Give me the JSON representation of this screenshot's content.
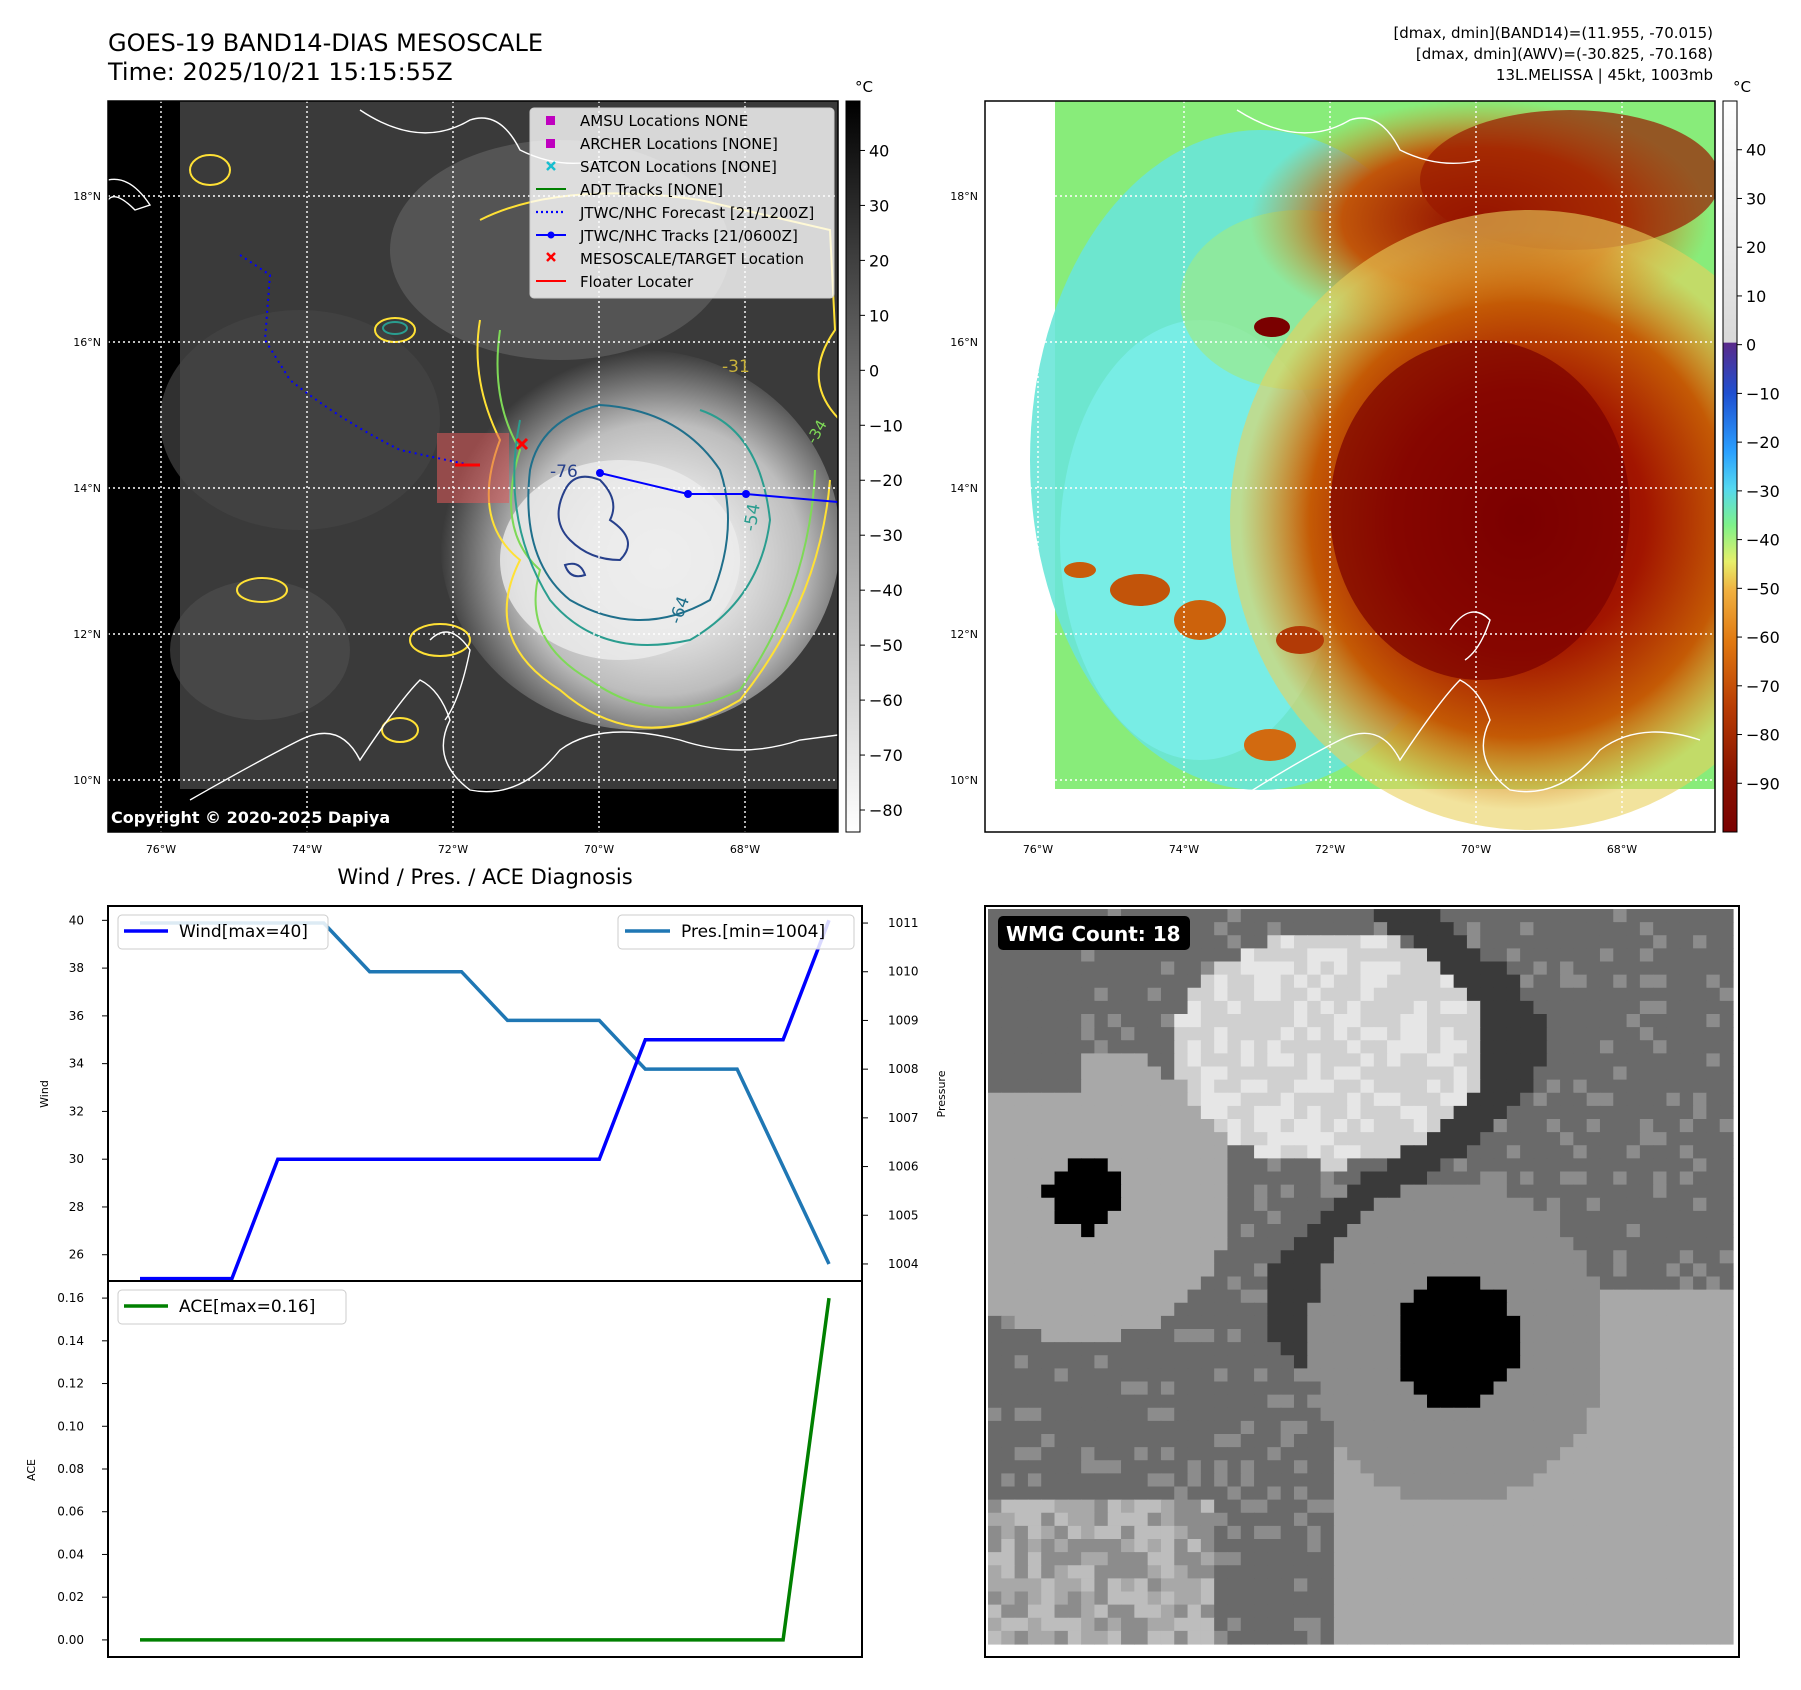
{
  "header": {
    "title_line1": "GOES-19 BAND14-DIAS MESOSCALE",
    "title_line2": "Time: 2025/10/21 15:15:55Z",
    "info_line1": "[dmax, dmin](BAND14)=(11.955, -70.015)",
    "info_line2": "[dmax, dmin](AWV)=(-30.825, -70.168)",
    "info_line3": "13L.MELISSA | 45kt, 1003mb"
  },
  "map_ir": {
    "copyright": "Copyright © 2020-2025 Dapiya",
    "lon_labels": [
      "76°W",
      "74°W",
      "72°W",
      "70°W",
      "68°W"
    ],
    "lat_labels": [
      "18°N",
      "16°N",
      "14°N",
      "12°N",
      "10°N"
    ],
    "contour_labels": [
      "-76",
      "-64",
      "-54",
      "-31",
      "-34"
    ],
    "legend": [
      {
        "label": "AMSU Locations NONE",
        "color": "#bf00bf",
        "marker": "square"
      },
      {
        "label": "ARCHER Locations [NONE]",
        "color": "#bf00bf",
        "marker": "square"
      },
      {
        "label": "SATCON Locations [NONE]",
        "color": "#17becf",
        "marker": "x"
      },
      {
        "label": "ADT Tracks [NONE]",
        "color": "#008000",
        "marker": "line"
      },
      {
        "label": "JTWC/NHC Forecast [21/1200Z]",
        "color": "#0000ff",
        "marker": "dotted"
      },
      {
        "label": "JTWC/NHC Tracks [21/0600Z]",
        "color": "#0000ff",
        "marker": "line-dot"
      },
      {
        "label": "MESOSCALE/TARGET Location",
        "color": "#ff0000",
        "marker": "x"
      },
      {
        "label": "Floater Locater",
        "color": "#ff0000",
        "marker": "line"
      }
    ],
    "colorbar": {
      "unit": "°C",
      "ticks": [
        "40",
        "30",
        "20",
        "10",
        "0",
        "−10",
        "−20",
        "−30",
        "−40",
        "−50",
        "−60",
        "−70",
        "−80"
      ]
    }
  },
  "map_awv": {
    "lon_labels": [
      "76°W",
      "74°W",
      "72°W",
      "70°W",
      "68°W"
    ],
    "lat_labels": [
      "18°N",
      "16°N",
      "14°N",
      "12°N",
      "10°N"
    ],
    "colorbar": {
      "unit": "°C",
      "ticks": [
        "40",
        "30",
        "20",
        "10",
        "0",
        "−10",
        "−20",
        "−30",
        "−40",
        "−50",
        "−60",
        "−70",
        "−80",
        "−90"
      ]
    }
  },
  "wmg": {
    "label": "WMG Count: 18"
  },
  "chart_data": [
    {
      "type": "line",
      "title": "Wind / Pres. / ACE Diagnosis",
      "x": [
        0,
        1,
        2,
        3,
        4,
        5,
        6,
        7,
        8,
        9,
        10,
        11,
        12,
        13,
        14,
        15
      ],
      "ylabel": "Wind",
      "ylim": [
        24.9,
        40.6
      ],
      "yticks": [
        26,
        28,
        30,
        32,
        34,
        36,
        38,
        40
      ],
      "series": [
        {
          "name": "Wind[max=40]",
          "color": "#0000ff",
          "values": [
            25,
            25,
            25,
            30,
            30,
            30,
            30,
            30,
            30,
            30,
            30,
            35,
            35,
            35,
            35,
            40
          ]
        }
      ],
      "y2label": "Pressure",
      "y2lim": [
        1003.65,
        1011.35
      ],
      "y2ticks": [
        1004,
        1005,
        1006,
        1007,
        1008,
        1009,
        1010,
        1011
      ],
      "series2": [
        {
          "name": "Pres.[min=1004]",
          "color": "#1f77b4",
          "values": [
            1011,
            1011,
            1011,
            1011,
            1011,
            1010,
            1010,
            1010,
            1009,
            1009,
            1009,
            1008,
            1008,
            1008,
            1006,
            1004
          ]
        }
      ]
    },
    {
      "type": "line",
      "x": [
        0,
        1,
        2,
        3,
        4,
        5,
        6,
        7,
        8,
        9,
        10,
        11,
        12,
        13,
        14,
        15
      ],
      "ylabel": "ACE",
      "ylim": [
        -0.008,
        0.168
      ],
      "yticks": [
        "0.00",
        "0.02",
        "0.04",
        "0.06",
        "0.08",
        "0.10",
        "0.12",
        "0.14",
        "0.16"
      ],
      "series": [
        {
          "name": "ACE[max=0.16]",
          "color": "#008000",
          "values": [
            0,
            0,
            0,
            0,
            0,
            0,
            0,
            0,
            0,
            0,
            0,
            0,
            0,
            0,
            0,
            0.16
          ]
        }
      ]
    }
  ]
}
